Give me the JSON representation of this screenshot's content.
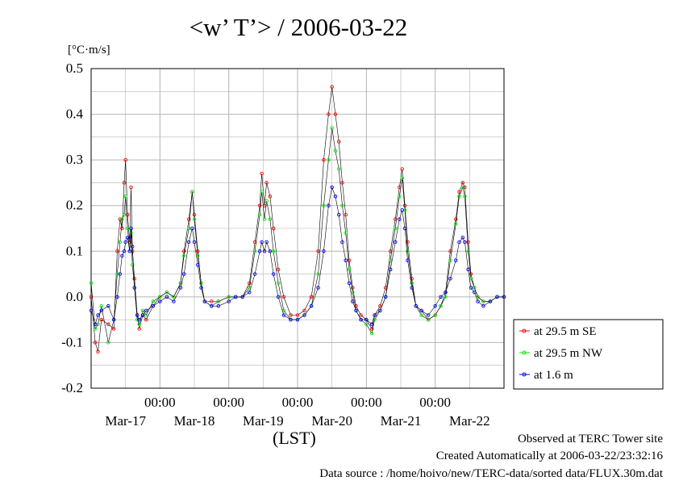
{
  "title": "<w’ T’> / 2006-03-22",
  "unit_label": "[°C·m/s]",
  "xlabel": "(LST)",
  "footer": {
    "observed": "Observed at TERC Tower site",
    "created": "Created Automatically at 2006-03-22/23:32:16",
    "source": "Data source : /home/hoivo/new/TERC-data/sorted  data/FLUX.30m.dat"
  },
  "colors": {
    "se": "#ff0000",
    "nw": "#00ee00",
    "low": "#0000ff",
    "line": "#000000",
    "grid": "#b4b4b4"
  },
  "chart_data": {
    "type": "line",
    "title": "<w’ T’> / 2006-03-22",
    "ylabel": "[°C·m/s]",
    "xlabel": "(LST)",
    "ylim": [
      -0.2,
      0.5
    ],
    "yticks": [
      "0.5",
      "0.4",
      "0.3",
      "0.2",
      "0.1",
      "0.0",
      "-0.1",
      "-0.2"
    ],
    "xlim_days_from_mar16_00": [
      0,
      6
    ],
    "time_tick_labels": [
      "00:00",
      "00:00",
      "00:00",
      "00:00",
      "00:00"
    ],
    "date_tick_labels": [
      "Mar-17",
      "Mar-18",
      "Mar-19",
      "Mar-20",
      "Mar-21",
      "Mar-22"
    ],
    "grid": true,
    "legend_position": "right",
    "series": [
      {
        "name": "at 29.5 m SE",
        "points": [
          [
            0,
            0.0
          ],
          [
            0.06,
            -0.1
          ],
          [
            0.1,
            -0.12
          ],
          [
            0.15,
            -0.05
          ],
          [
            0.25,
            -0.06
          ],
          [
            0.33,
            -0.07
          ],
          [
            0.38,
            0.1
          ],
          [
            0.42,
            0.17
          ],
          [
            0.45,
            0.15
          ],
          [
            0.48,
            0.25
          ],
          [
            0.5,
            0.3
          ],
          [
            0.53,
            0.18
          ],
          [
            0.56,
            0.12
          ],
          [
            0.58,
            0.24
          ],
          [
            0.6,
            0.1
          ],
          [
            0.63,
            0.04
          ],
          [
            0.67,
            -0.04
          ],
          [
            0.7,
            -0.07
          ],
          [
            0.75,
            -0.04
          ],
          [
            0.8,
            -0.05
          ],
          [
            0.9,
            -0.02
          ],
          [
            1.0,
            0.0
          ],
          [
            1.1,
            0.01
          ],
          [
            1.2,
            0.0
          ],
          [
            1.3,
            0.03
          ],
          [
            1.35,
            0.1
          ],
          [
            1.42,
            0.17
          ],
          [
            1.47,
            0.23
          ],
          [
            1.5,
            0.18
          ],
          [
            1.55,
            0.1
          ],
          [
            1.6,
            0.03
          ],
          [
            1.65,
            -0.01
          ],
          [
            1.75,
            -0.01
          ],
          [
            1.85,
            -0.01
          ],
          [
            2.0,
            0.0
          ],
          [
            2.1,
            0.0
          ],
          [
            2.2,
            0.0
          ],
          [
            2.3,
            0.03
          ],
          [
            2.38,
            0.12
          ],
          [
            2.45,
            0.2
          ],
          [
            2.48,
            0.27
          ],
          [
            2.52,
            0.2
          ],
          [
            2.55,
            0.25
          ],
          [
            2.6,
            0.22
          ],
          [
            2.65,
            0.15
          ],
          [
            2.72,
            0.06
          ],
          [
            2.8,
            0.0
          ],
          [
            2.9,
            -0.04
          ],
          [
            3.0,
            -0.04
          ],
          [
            3.1,
            -0.03
          ],
          [
            3.2,
            0.0
          ],
          [
            3.3,
            0.1
          ],
          [
            3.38,
            0.3
          ],
          [
            3.45,
            0.4
          ],
          [
            3.5,
            0.46
          ],
          [
            3.55,
            0.4
          ],
          [
            3.6,
            0.34
          ],
          [
            3.65,
            0.25
          ],
          [
            3.7,
            0.18
          ],
          [
            3.75,
            0.08
          ],
          [
            3.8,
            0.02
          ],
          [
            3.85,
            -0.02
          ],
          [
            3.92,
            -0.04
          ],
          [
            4.0,
            -0.05
          ],
          [
            4.08,
            -0.07
          ],
          [
            4.12,
            -0.04
          ],
          [
            4.2,
            -0.02
          ],
          [
            4.28,
            0.02
          ],
          [
            4.35,
            0.1
          ],
          [
            4.42,
            0.17
          ],
          [
            4.48,
            0.24
          ],
          [
            4.52,
            0.28
          ],
          [
            4.56,
            0.2
          ],
          [
            4.6,
            0.12
          ],
          [
            4.66,
            0.04
          ],
          [
            4.72,
            -0.02
          ],
          [
            4.8,
            -0.03
          ],
          [
            4.9,
            -0.05
          ],
          [
            5.0,
            -0.04
          ],
          [
            5.08,
            -0.02
          ],
          [
            5.15,
            0.01
          ],
          [
            5.22,
            0.1
          ],
          [
            5.3,
            0.17
          ],
          [
            5.35,
            0.23
          ],
          [
            5.4,
            0.25
          ],
          [
            5.43,
            0.24
          ],
          [
            5.48,
            0.12
          ],
          [
            5.52,
            0.05
          ],
          [
            5.57,
            0.02
          ],
          [
            5.62,
            0.0
          ],
          [
            5.7,
            -0.01
          ],
          [
            5.8,
            -0.01
          ],
          [
            5.9,
            0.0
          ],
          [
            6.0,
            0.0
          ]
        ]
      },
      {
        "name": "at 29.5 m NW",
        "points": [
          [
            0,
            0.03
          ],
          [
            0.06,
            -0.07
          ],
          [
            0.1,
            -0.06
          ],
          [
            0.15,
            -0.02
          ],
          [
            0.25,
            -0.1
          ],
          [
            0.33,
            -0.05
          ],
          [
            0.38,
            0.05
          ],
          [
            0.42,
            0.12
          ],
          [
            0.45,
            0.17
          ],
          [
            0.48,
            0.18
          ],
          [
            0.5,
            0.22
          ],
          [
            0.53,
            0.15
          ],
          [
            0.56,
            0.1
          ],
          [
            0.58,
            0.14
          ],
          [
            0.6,
            0.07
          ],
          [
            0.63,
            0.02
          ],
          [
            0.67,
            -0.05
          ],
          [
            0.7,
            -0.06
          ],
          [
            0.75,
            -0.03
          ],
          [
            0.8,
            -0.04
          ],
          [
            0.9,
            -0.01
          ],
          [
            1.0,
            0.0
          ],
          [
            1.1,
            0.01
          ],
          [
            1.2,
            0.0
          ],
          [
            1.3,
            0.03
          ],
          [
            1.35,
            0.09
          ],
          [
            1.42,
            0.15
          ],
          [
            1.47,
            0.23
          ],
          [
            1.5,
            0.17
          ],
          [
            1.55,
            0.09
          ],
          [
            1.6,
            0.03
          ],
          [
            1.65,
            -0.01
          ],
          [
            1.75,
            -0.02
          ],
          [
            1.85,
            -0.01
          ],
          [
            2.0,
            0.0
          ],
          [
            2.1,
            0.0
          ],
          [
            2.2,
            0.0
          ],
          [
            2.3,
            0.02
          ],
          [
            2.38,
            0.1
          ],
          [
            2.45,
            0.18
          ],
          [
            2.48,
            0.23
          ],
          [
            2.52,
            0.17
          ],
          [
            2.55,
            0.21
          ],
          [
            2.6,
            0.17
          ],
          [
            2.65,
            0.1
          ],
          [
            2.72,
            0.03
          ],
          [
            2.8,
            -0.03
          ],
          [
            2.9,
            -0.05
          ],
          [
            3.0,
            -0.05
          ],
          [
            3.1,
            -0.04
          ],
          [
            3.2,
            -0.02
          ],
          [
            3.3,
            0.05
          ],
          [
            3.38,
            0.2
          ],
          [
            3.45,
            0.3
          ],
          [
            3.5,
            0.37
          ],
          [
            3.55,
            0.32
          ],
          [
            3.6,
            0.28
          ],
          [
            3.65,
            0.2
          ],
          [
            3.7,
            0.14
          ],
          [
            3.75,
            0.06
          ],
          [
            3.8,
            0.01
          ],
          [
            3.85,
            -0.03
          ],
          [
            3.92,
            -0.05
          ],
          [
            4.0,
            -0.06
          ],
          [
            4.08,
            -0.08
          ],
          [
            4.12,
            -0.05
          ],
          [
            4.2,
            -0.03
          ],
          [
            4.28,
            0.0
          ],
          [
            4.35,
            0.08
          ],
          [
            4.42,
            0.15
          ],
          [
            4.48,
            0.22
          ],
          [
            4.52,
            0.26
          ],
          [
            4.56,
            0.19
          ],
          [
            4.6,
            0.1
          ],
          [
            4.66,
            0.03
          ],
          [
            4.72,
            -0.02
          ],
          [
            4.8,
            -0.04
          ],
          [
            4.9,
            -0.05
          ],
          [
            5.0,
            -0.04
          ],
          [
            5.08,
            -0.02
          ],
          [
            5.15,
            0.0
          ],
          [
            5.22,
            0.08
          ],
          [
            5.3,
            0.16
          ],
          [
            5.35,
            0.22
          ],
          [
            5.4,
            0.24
          ],
          [
            5.43,
            0.22
          ],
          [
            5.48,
            0.1
          ],
          [
            5.52,
            0.04
          ],
          [
            5.57,
            0.02
          ],
          [
            5.62,
            0.0
          ],
          [
            5.7,
            -0.01
          ],
          [
            5.8,
            -0.01
          ],
          [
            5.9,
            0.0
          ],
          [
            6.0,
            0.0
          ]
        ]
      },
      {
        "name": "at 1.6 m",
        "points": [
          [
            0,
            -0.03
          ],
          [
            0.06,
            -0.06
          ],
          [
            0.1,
            -0.04
          ],
          [
            0.15,
            -0.03
          ],
          [
            0.25,
            -0.02
          ],
          [
            0.33,
            -0.05
          ],
          [
            0.38,
            0.0
          ],
          [
            0.42,
            0.05
          ],
          [
            0.45,
            0.09
          ],
          [
            0.48,
            0.1
          ],
          [
            0.5,
            0.12
          ],
          [
            0.53,
            0.13
          ],
          [
            0.56,
            0.1
          ],
          [
            0.58,
            0.15
          ],
          [
            0.6,
            0.11
          ],
          [
            0.63,
            0.02
          ],
          [
            0.67,
            -0.04
          ],
          [
            0.7,
            -0.05
          ],
          [
            0.75,
            -0.04
          ],
          [
            0.8,
            -0.03
          ],
          [
            0.9,
            -0.02
          ],
          [
            1.0,
            -0.01
          ],
          [
            1.1,
            0.0
          ],
          [
            1.2,
            -0.01
          ],
          [
            1.3,
            0.02
          ],
          [
            1.35,
            0.05
          ],
          [
            1.42,
            0.12
          ],
          [
            1.47,
            0.15
          ],
          [
            1.5,
            0.12
          ],
          [
            1.55,
            0.07
          ],
          [
            1.6,
            0.02
          ],
          [
            1.65,
            -0.01
          ],
          [
            1.75,
            -0.02
          ],
          [
            1.85,
            -0.02
          ],
          [
            2.0,
            -0.01
          ],
          [
            2.1,
            0.0
          ],
          [
            2.2,
            0.0
          ],
          [
            2.3,
            0.01
          ],
          [
            2.38,
            0.05
          ],
          [
            2.45,
            0.1
          ],
          [
            2.48,
            0.12
          ],
          [
            2.52,
            0.1
          ],
          [
            2.55,
            0.12
          ],
          [
            2.6,
            0.1
          ],
          [
            2.65,
            0.05
          ],
          [
            2.72,
            0.0
          ],
          [
            2.8,
            -0.04
          ],
          [
            2.9,
            -0.05
          ],
          [
            3.0,
            -0.05
          ],
          [
            3.1,
            -0.04
          ],
          [
            3.2,
            -0.02
          ],
          [
            3.3,
            0.02
          ],
          [
            3.38,
            0.1
          ],
          [
            3.45,
            0.2
          ],
          [
            3.5,
            0.24
          ],
          [
            3.55,
            0.22
          ],
          [
            3.6,
            0.18
          ],
          [
            3.65,
            0.12
          ],
          [
            3.7,
            0.08
          ],
          [
            3.75,
            0.03
          ],
          [
            3.8,
            -0.01
          ],
          [
            3.85,
            -0.03
          ],
          [
            3.92,
            -0.05
          ],
          [
            4.0,
            -0.05
          ],
          [
            4.08,
            -0.06
          ],
          [
            4.12,
            -0.04
          ],
          [
            4.2,
            -0.03
          ],
          [
            4.28,
            0.0
          ],
          [
            4.35,
            0.06
          ],
          [
            4.42,
            0.12
          ],
          [
            4.48,
            0.17
          ],
          [
            4.52,
            0.19
          ],
          [
            4.56,
            0.15
          ],
          [
            4.6,
            0.08
          ],
          [
            4.66,
            0.02
          ],
          [
            4.72,
            -0.02
          ],
          [
            4.8,
            -0.03
          ],
          [
            4.9,
            -0.04
          ],
          [
            5.0,
            -0.02
          ],
          [
            5.08,
            0.0
          ],
          [
            5.15,
            0.01
          ],
          [
            5.22,
            0.04
          ],
          [
            5.3,
            0.08
          ],
          [
            5.35,
            0.12
          ],
          [
            5.4,
            0.13
          ],
          [
            5.43,
            0.12
          ],
          [
            5.48,
            0.06
          ],
          [
            5.52,
            0.02
          ],
          [
            5.57,
            0.01
          ],
          [
            5.62,
            -0.01
          ],
          [
            5.7,
            -0.02
          ],
          [
            5.8,
            -0.01
          ],
          [
            5.9,
            0.0
          ],
          [
            6.0,
            0.0
          ]
        ]
      }
    ]
  }
}
